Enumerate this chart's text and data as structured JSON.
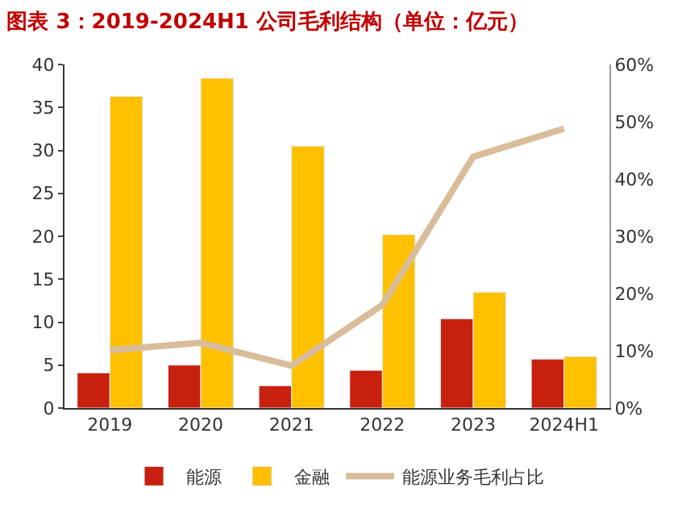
{
  "chart_data": {
    "type": "bar",
    "title": "图表 3：2019-2024H1 公司毛利结构（单位：亿元）",
    "categories": [
      "2019",
      "2020",
      "2021",
      "2022",
      "2023",
      "2024H1"
    ],
    "series": [
      {
        "name": "能源",
        "color": "#c8200e",
        "values": [
          4.1,
          5.0,
          2.6,
          4.4,
          10.4,
          5.7
        ]
      },
      {
        "name": "金融",
        "color": "#ffc000",
        "values": [
          36.3,
          38.4,
          30.5,
          20.2,
          13.5,
          6.0
        ]
      },
      {
        "name": "能源业务毛利占比",
        "type": "line",
        "axis": "y2",
        "color": "#d9bc9a",
        "values": [
          10.1,
          11.4,
          7.4,
          18.0,
          43.9,
          48.8
        ]
      }
    ],
    "ylim": [
      0,
      40
    ],
    "yticks": [
      0,
      5,
      10,
      15,
      20,
      25,
      30,
      35,
      40
    ],
    "y2lim": [
      0,
      60
    ],
    "y2ticks": [
      {
        "value": 0,
        "label": "0%"
      },
      {
        "value": 10,
        "label": "10%"
      },
      {
        "value": 20,
        "label": "20%"
      },
      {
        "value": 30,
        "label": "30%"
      },
      {
        "value": 40,
        "label": "40%"
      },
      {
        "value": 50,
        "label": "50%"
      },
      {
        "value": 60,
        "label": "60%"
      }
    ],
    "legend": "bottom",
    "marker": "none",
    "line_style": "solid"
  }
}
